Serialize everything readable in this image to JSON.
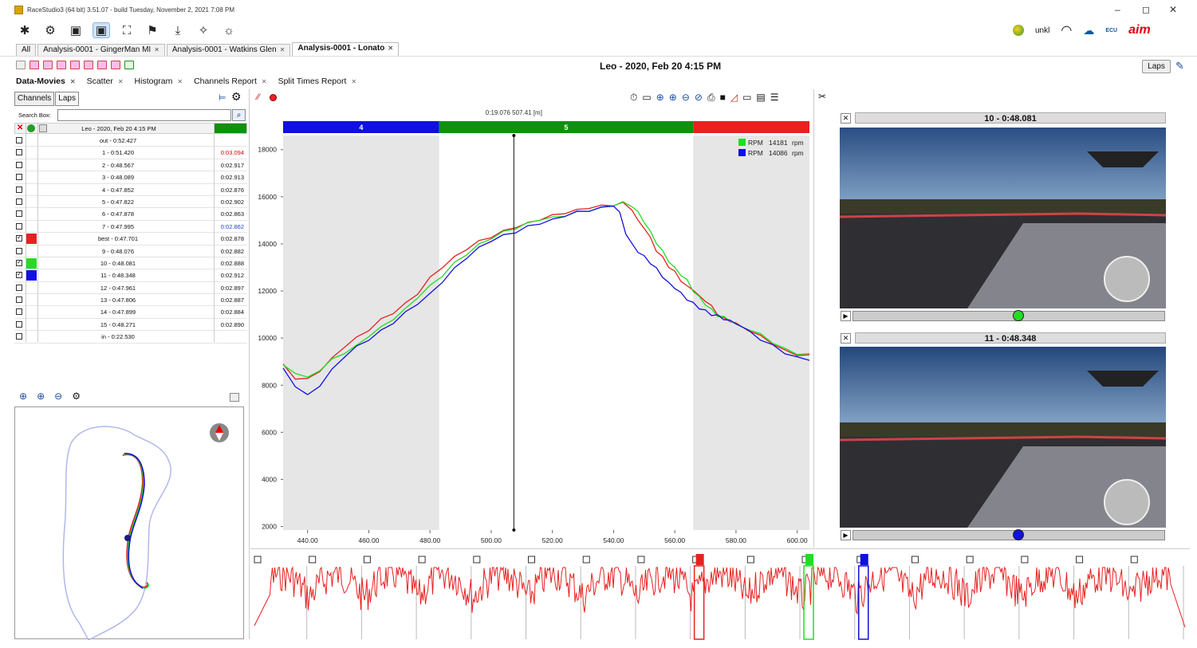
{
  "window": {
    "title": "RaceStudio3 (64 bit) 3.51.07 - build Tuesday, November 2, 2021 7:08 PM",
    "controls": [
      "–",
      "◻",
      "✕"
    ]
  },
  "right_toolbar": {
    "user": "unkl",
    "ecu_label": "ECU",
    "brand": "aim"
  },
  "tabs": [
    {
      "label": "All",
      "active": false,
      "closable": false
    },
    {
      "label": "Analysis-0001 - GingerMan MI",
      "active": false,
      "closable": true
    },
    {
      "label": "Analysis-0001 - Watkins Glen",
      "active": false,
      "closable": true
    },
    {
      "label": "Analysis-0001 - Lonato",
      "active": true,
      "closable": true
    }
  ],
  "session": {
    "title": "Leo - 2020, Feb 20 4:15 PM",
    "laps_button": "Laps"
  },
  "subtabs": [
    {
      "label": "Data-Movies",
      "active": true
    },
    {
      "label": "Scatter",
      "active": false
    },
    {
      "label": "Histogram",
      "active": false
    },
    {
      "label": "Channels Report",
      "active": false
    },
    {
      "label": "Split Times Report",
      "active": false
    }
  ],
  "left": {
    "channels_button": "Channels",
    "laps_button": "Laps",
    "search_label": "Search Box:",
    "search_value": "",
    "table_header": "Leo - 2020, Feb 20 4:15 PM",
    "laps": [
      {
        "label": "out - 0:52.427",
        "time": "",
        "checked": false,
        "color": ""
      },
      {
        "label": "1 - 0:51.420",
        "time": "0:03.094",
        "time_color": "#e00000",
        "checked": false,
        "color": ""
      },
      {
        "label": "2 - 0:48.567",
        "time": "0:02.917",
        "checked": false,
        "color": ""
      },
      {
        "label": "3 - 0:48.089",
        "time": "0:02.913",
        "checked": false,
        "color": ""
      },
      {
        "label": "4 - 0:47.852",
        "time": "0:02.876",
        "checked": false,
        "color": ""
      },
      {
        "label": "5 - 0:47.822",
        "time": "0:02.902",
        "checked": false,
        "color": ""
      },
      {
        "label": "6 - 0:47.878",
        "time": "0:02.863",
        "checked": false,
        "color": ""
      },
      {
        "label": "7 - 0:47.995",
        "time": "0:02.862",
        "time_color": "#2040e0",
        "checked": false,
        "color": ""
      },
      {
        "label": "best - 0:47.701",
        "time": "0:02.878",
        "checked": true,
        "color": "#e82020"
      },
      {
        "label": "9 - 0:48.076",
        "time": "0:02.882",
        "checked": false,
        "color": ""
      },
      {
        "label": "10 - 0:48.081",
        "time": "0:02.888",
        "checked": true,
        "color": "#22dd22"
      },
      {
        "label": "11 - 0:48.348",
        "time": "0:02.912",
        "checked": true,
        "color": "#1010e0"
      },
      {
        "label": "12 - 0:47.961",
        "time": "0:02.897",
        "checked": false,
        "color": ""
      },
      {
        "label": "13 - 0:47.806",
        "time": "0:02.887",
        "checked": false,
        "color": ""
      },
      {
        "label": "14 - 0:47.899",
        "time": "0:02.884",
        "checked": false,
        "color": ""
      },
      {
        "label": "15 - 0:48.271",
        "time": "0:02.890",
        "checked": false,
        "color": ""
      },
      {
        "label": "in - 0:22.530",
        "time": "",
        "checked": false,
        "color": ""
      }
    ]
  },
  "chart_data": {
    "type": "line",
    "title": "",
    "cursor_readout": "0:19.076  507.41 [m]",
    "cursor_x": 507.41,
    "xlabel": "",
    "ylabel": "",
    "xlim": [
      432,
      604
    ],
    "ylim": [
      1850,
      18600
    ],
    "x_ticks": [
      "440.00",
      "460.00",
      "480.00",
      "500.00",
      "520.00",
      "540.00",
      "560.00",
      "580.00",
      "600.00"
    ],
    "x_tick_values": [
      440,
      460,
      480,
      500,
      520,
      540,
      560,
      580,
      600
    ],
    "y_ticks": [
      "18000",
      "16000",
      "14000",
      "12000",
      "10000",
      "8000",
      "6000",
      "4000",
      "2000"
    ],
    "y_tick_values": [
      18000,
      16000,
      14000,
      12000,
      10000,
      8000,
      6000,
      4000,
      2000
    ],
    "sectors": [
      {
        "label": "4",
        "from": 432,
        "to": 483,
        "color": "#1010e0"
      },
      {
        "label": "5",
        "from": 483,
        "to": 566,
        "color": "#109010"
      },
      {
        "label": "",
        "from": 566,
        "to": 604,
        "color": "#e82020"
      }
    ],
    "shaded_ranges": [
      [
        432,
        483
      ],
      [
        566,
        604
      ]
    ],
    "legend": {
      "placement": "top-right",
      "entries": [
        {
          "name": "RPM",
          "value": "14181",
          "unit": "rpm",
          "color": "#22dd22"
        },
        {
          "name": "RPM",
          "value": "14086",
          "unit": "rpm",
          "color": "#1010e0"
        }
      ]
    },
    "series": [
      {
        "lap": "best",
        "color": "#e82020",
        "x": [
          432,
          436,
          440,
          444,
          448,
          452,
          456,
          460,
          464,
          468,
          472,
          476,
          480,
          484,
          488,
          492,
          496,
          500,
          504,
          508,
          512,
          516,
          520,
          524,
          528,
          532,
          536,
          540,
          543,
          546,
          548,
          550,
          552,
          554,
          556,
          558,
          560,
          562,
          564,
          566,
          568,
          570,
          572,
          574,
          576,
          578,
          580,
          584,
          588,
          592,
          596,
          600,
          604
        ],
        "y": [
          8900,
          8300,
          8200,
          8600,
          9100,
          9600,
          10000,
          10400,
          10800,
          11100,
          11500,
          11900,
          12500,
          13000,
          13400,
          13750,
          14100,
          14350,
          14550,
          14750,
          14900,
          15050,
          15150,
          15300,
          15400,
          15500,
          15600,
          15700,
          15750,
          15500,
          15000,
          14700,
          14200,
          13700,
          13400,
          13000,
          12800,
          12500,
          12200,
          12100,
          11800,
          11600,
          11300,
          11000,
          10800,
          10700,
          10600,
          10400,
          10100,
          9800,
          9500,
          9300,
          9200
        ]
      },
      {
        "lap": "10",
        "color": "#22dd22",
        "x": [
          432,
          436,
          440,
          444,
          448,
          452,
          456,
          460,
          464,
          468,
          472,
          476,
          480,
          484,
          488,
          492,
          496,
          500,
          504,
          508,
          512,
          516,
          520,
          524,
          528,
          532,
          536,
          540,
          543,
          546,
          548,
          550,
          552,
          554,
          556,
          558,
          560,
          562,
          564,
          566,
          568,
          570,
          572,
          574,
          576,
          578,
          580,
          584,
          588,
          592,
          596,
          600,
          604
        ],
        "y": [
          8800,
          8500,
          8300,
          8700,
          9100,
          9400,
          9700,
          10100,
          10400,
          10800,
          11200,
          11700,
          12200,
          12700,
          13200,
          13600,
          14000,
          14250,
          14450,
          14650,
          14850,
          15000,
          15100,
          15250,
          15350,
          15450,
          15550,
          15650,
          15700,
          15600,
          15300,
          14900,
          14500,
          14100,
          13700,
          13300,
          13000,
          12700,
          12400,
          12000,
          11700,
          11400,
          11200,
          11000,
          10900,
          10800,
          10600,
          10400,
          10100,
          9800,
          9500,
          9300,
          9300
        ]
      },
      {
        "lap": "11",
        "color": "#1010e0",
        "x": [
          432,
          436,
          440,
          444,
          448,
          452,
          456,
          460,
          464,
          468,
          472,
          476,
          480,
          484,
          488,
          492,
          496,
          500,
          504,
          508,
          512,
          516,
          520,
          524,
          528,
          532,
          536,
          540,
          542,
          544,
          546,
          548,
          550,
          552,
          554,
          556,
          558,
          560,
          562,
          564,
          566,
          568,
          570,
          572,
          574,
          576,
          578,
          580,
          584,
          588,
          592,
          596,
          600,
          604
        ],
        "y": [
          8700,
          8000,
          7600,
          8000,
          8600,
          9200,
          9600,
          9900,
          10300,
          10700,
          11100,
          11500,
          11900,
          12400,
          12900,
          13400,
          13800,
          14100,
          14350,
          14550,
          14750,
          14900,
          15050,
          15200,
          15300,
          15400,
          15500,
          15600,
          15300,
          14500,
          14000,
          13700,
          13500,
          13200,
          12900,
          12600,
          12300,
          12100,
          11900,
          11700,
          11500,
          11300,
          11200,
          11000,
          10900,
          10800,
          10700,
          10600,
          10300,
          10000,
          9700,
          9400,
          9200,
          9100
        ]
      }
    ]
  },
  "videos": [
    {
      "title": "10 - 0:48.081",
      "knob_color": "#22dd22",
      "progress": 0.53
    },
    {
      "title": "11 - 0:48.348",
      "knob_color": "#1010e0",
      "progress": 0.53
    }
  ],
  "strip": {
    "highlights": [
      {
        "color": "#e82020"
      },
      {
        "color": "#22dd22"
      },
      {
        "color": "#1010e0"
      }
    ]
  }
}
